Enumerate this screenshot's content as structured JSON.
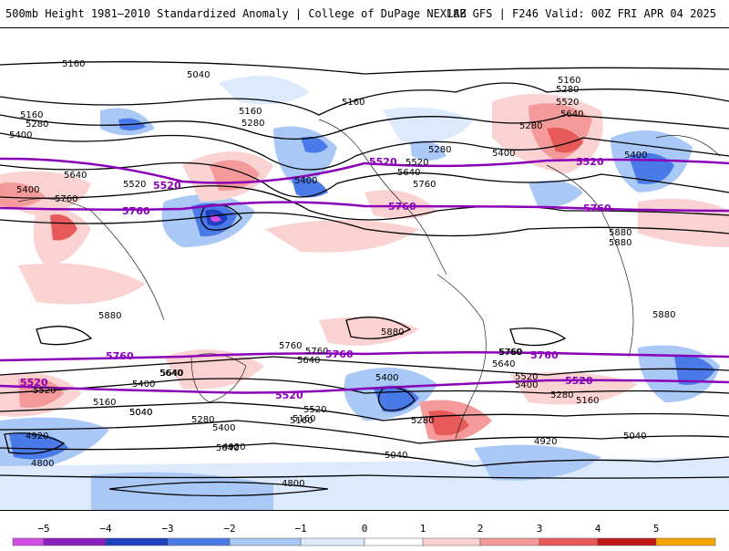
{
  "header": {
    "title_left": "500mb Height 1981–2010 Standardized Anomaly | College of DuPage NEXLAB",
    "title_right": "18Z GFS | F246 Valid: 00Z FRI APR 04 2025"
  },
  "contour_labels_black": [
    "5160",
    "5040",
    "5160",
    "5280",
    "5400",
    "5160",
    "5280",
    "5400",
    "5520",
    "5640",
    "5760",
    "5400",
    "5160",
    "5280",
    "5520",
    "5640",
    "5760",
    "5280",
    "5400",
    "5520",
    "5640",
    "5160",
    "5280",
    "5400",
    "5880",
    "5880",
    "5880",
    "5880",
    "5880",
    "5760",
    "5640",
    "5520",
    "5400",
    "5160",
    "5040",
    "4920",
    "4800",
    "5760",
    "5640",
    "5520",
    "5400",
    "5280",
    "5160",
    "5040",
    "4920",
    "5400",
    "5280",
    "5160",
    "5040",
    "5040",
    "4920",
    "4800",
    "5760",
    "5640",
    "5520",
    "5400",
    "5280",
    "5160",
    "5040",
    "5640",
    "5760"
  ],
  "contour_labels_purple": [
    "5520",
    "5520",
    "5520",
    "5760",
    "5760",
    "5760",
    "5760",
    "5760",
    "5760",
    "5520",
    "5520",
    "5520"
  ],
  "colorbar": {
    "ticks": [
      "−5",
      "−4",
      "−3",
      "−2",
      "−1",
      "0",
      "1",
      "2",
      "3",
      "4",
      "5"
    ],
    "colors": [
      "#d24de3",
      "#8a1fbf",
      "#1f3fbf",
      "#4a7ae8",
      "#a9c8f5",
      "#ddeafc",
      "#ffffff",
      "#fbd2d2",
      "#f59a9a",
      "#e85a5a",
      "#c01717",
      "#f5a400"
    ]
  }
}
